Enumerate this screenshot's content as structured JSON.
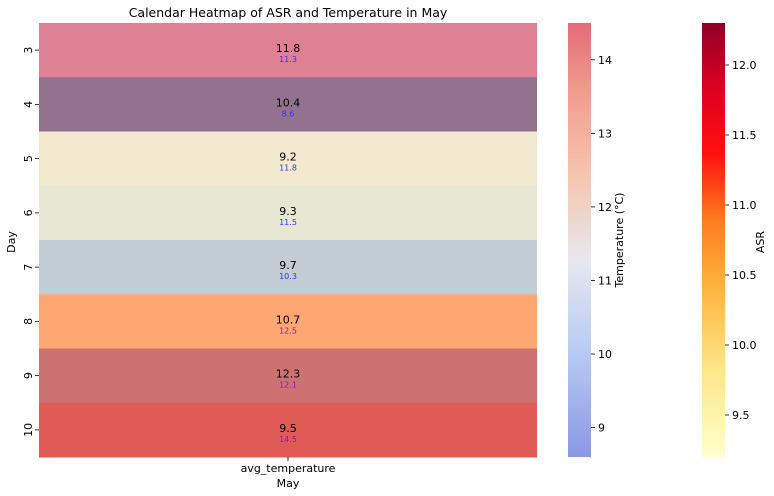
{
  "chart_data": {
    "type": "heatmap",
    "title": "Calendar Heatmap of ASR and Temperature in May",
    "xlabel": "May",
    "ylabel": "Day",
    "x_categories": [
      "avg_temperature"
    ],
    "y_categories": [
      "3",
      "4",
      "5",
      "6",
      "7",
      "8",
      "9",
      "10"
    ],
    "asr_values": [
      11.8,
      10.4,
      9.2,
      9.3,
      9.7,
      10.7,
      12.3,
      9.5
    ],
    "temperature_values": [
      11.3,
      8.6,
      11.8,
      11.5,
      10.3,
      12.5,
      12.1,
      14.5
    ],
    "colorbars": [
      {
        "label": "Temperature (°C)",
        "colormap": "coolwarm",
        "range": [
          8.6,
          14.5
        ],
        "ticks": [
          "9",
          "10",
          "11",
          "12",
          "13",
          "14"
        ],
        "tick_values": [
          9,
          10,
          11,
          12,
          13,
          14
        ]
      },
      {
        "label": "ASR",
        "colormap": "YlOrRd",
        "range": [
          9.2,
          12.3
        ],
        "ticks": [
          "9.5",
          "10.0",
          "10.5",
          "11.0",
          "11.5",
          "12.0"
        ],
        "tick_values": [
          9.5,
          10.0,
          10.5,
          11.0,
          11.5,
          12.0
        ]
      }
    ],
    "cell_colors": [
      "#de8195",
      "#92728f",
      "#f2e9ce",
      "#e6e8d4",
      "#c1ccd5",
      "#fea772",
      "#cd7273",
      "#e15b56"
    ],
    "label_colors": {
      "primary": "#000000",
      "secondary_low": "#3030ff",
      "secondary_high": "#9010d0"
    },
    "grid": false
  }
}
